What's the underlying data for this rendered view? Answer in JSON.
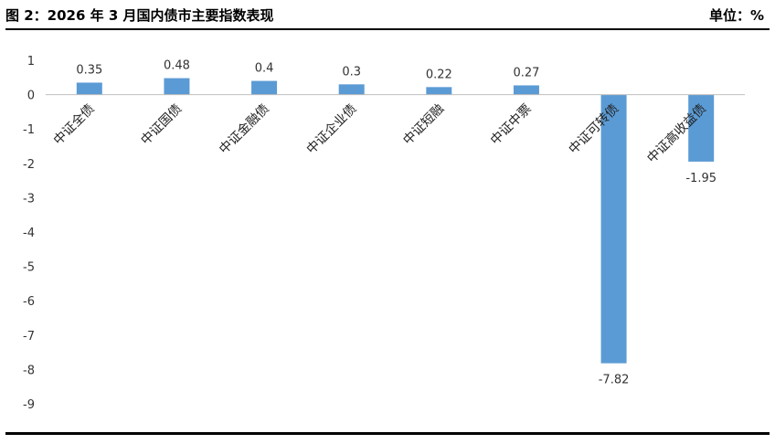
{
  "header": {
    "title": "图 2：2026 年 3 月国内债市主要指数表现",
    "unit": "单位：%"
  },
  "colors": {
    "bar": "#5b9bd5",
    "axis": "#bfbfbf"
  },
  "chart_data": {
    "type": "bar",
    "categories": [
      "中证全债",
      "中证国债",
      "中证金融债",
      "中证企业债",
      "中证短融",
      "中证中票",
      "中证可转债",
      "中证高收益债"
    ],
    "series": [
      {
        "values": [
          0.35,
          0.48,
          0.4,
          0.3,
          0.22,
          0.27,
          -7.82,
          -1.95
        ]
      }
    ],
    "value_labels": [
      "0.35",
      "0.48",
      "0.4",
      "0.3",
      "0.22",
      "0.27",
      "-7.82",
      "-1.95"
    ],
    "yticks": [
      1,
      0,
      -1,
      -2,
      -3,
      -4,
      -5,
      -6,
      -7,
      -8,
      -9
    ],
    "ylim": [
      -9,
      1
    ],
    "grid": false,
    "legend": "none"
  }
}
